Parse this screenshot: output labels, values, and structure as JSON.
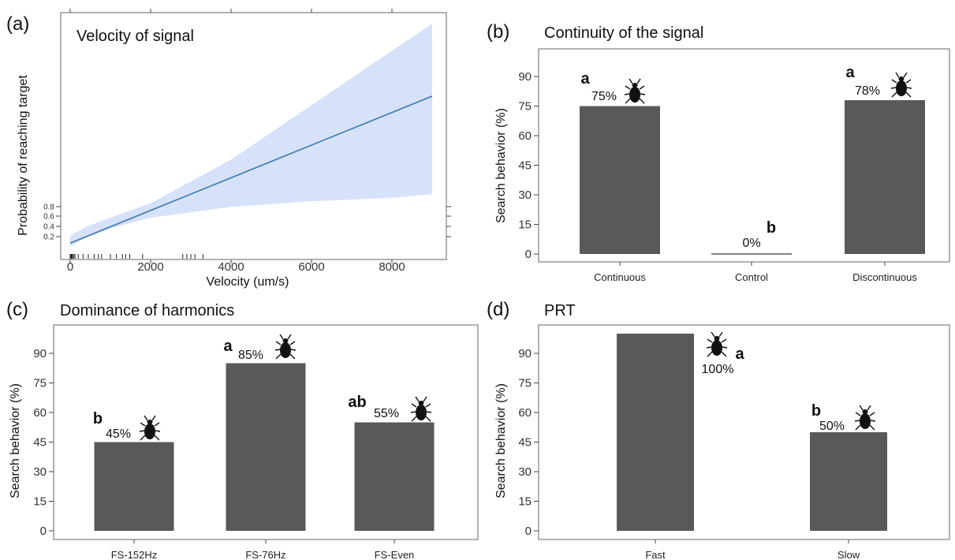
{
  "colors": {
    "bar": "#595959",
    "line": "#3a78b0",
    "ribbon": "#d6e2fa",
    "frame": "#999999",
    "axis": "#444444"
  },
  "icon": "beetle-icon",
  "chart_data": [
    {
      "panel": "(a)",
      "type": "line",
      "title": "Velocity of signal",
      "xlabel": "Velocity (um/s)",
      "ylabel": "Probability of reaching target",
      "x_ticks": [
        "0",
        "2000",
        "4000",
        "6000",
        "8000"
      ],
      "y_ticks": [
        "0.2",
        "0.4",
        "0.6",
        "0.8"
      ],
      "xlim": [
        -200,
        9200
      ],
      "series": [
        {
          "x": [
            0,
            9000
          ],
          "y": [
            0.06,
            0.87
          ]
        }
      ],
      "confidence_band": {
        "x": [
          0,
          400,
          1000,
          2000,
          4000,
          6000,
          8000,
          9000
        ],
        "lower": [
          0.04,
          0.09,
          0.14,
          0.2,
          0.26,
          0.29,
          0.31,
          0.33
        ],
        "upper": [
          0.1,
          0.15,
          0.2,
          0.28,
          0.52,
          0.82,
          1.12,
          1.27
        ]
      },
      "rug_x": [
        0,
        20,
        40,
        60,
        90,
        120,
        200,
        320,
        450,
        600,
        700,
        780,
        1000,
        1150,
        1300,
        1380,
        1480,
        1800,
        2800,
        2900,
        3000,
        3100,
        3300
      ]
    },
    {
      "panel": "(b)",
      "type": "bar",
      "title": "Continuity of the signal",
      "ylabel": "Search behavior (%)",
      "ylim": [
        -3,
        102
      ],
      "y_ticks": [
        0,
        15,
        30,
        45,
        60,
        75,
        90
      ],
      "categories": [
        "Continuous",
        "Control",
        "Discontinuous"
      ],
      "values": [
        75,
        0,
        78
      ],
      "labels": [
        "75%",
        "0%",
        "78%"
      ],
      "significance": [
        "a",
        "b",
        "a"
      ],
      "icons": [
        true,
        false,
        true
      ]
    },
    {
      "panel": "(c)",
      "type": "bar",
      "title": "Dominance of harmonics",
      "ylabel": "Search behavior (%)",
      "ylim": [
        -3,
        102
      ],
      "y_ticks": [
        0,
        15,
        30,
        45,
        60,
        75,
        90
      ],
      "categories": [
        "FS-152Hz",
        "FS-76Hz",
        "FS-Even"
      ],
      "values": [
        45,
        85,
        55
      ],
      "labels": [
        "45%",
        "85%",
        "55%"
      ],
      "significance": [
        "b",
        "a",
        "ab"
      ],
      "icons": [
        true,
        true,
        true
      ]
    },
    {
      "panel": "(d)",
      "type": "bar",
      "title": "PRT",
      "ylabel": "Search behavior (%)",
      "ylim": [
        -3,
        102
      ],
      "y_ticks": [
        0,
        15,
        30,
        45,
        60,
        75,
        90
      ],
      "categories": [
        "Fast",
        "Slow"
      ],
      "values": [
        100,
        50
      ],
      "labels": [
        "100%",
        "50%"
      ],
      "significance": [
        "a",
        "b"
      ],
      "icons": [
        true,
        true
      ]
    }
  ]
}
